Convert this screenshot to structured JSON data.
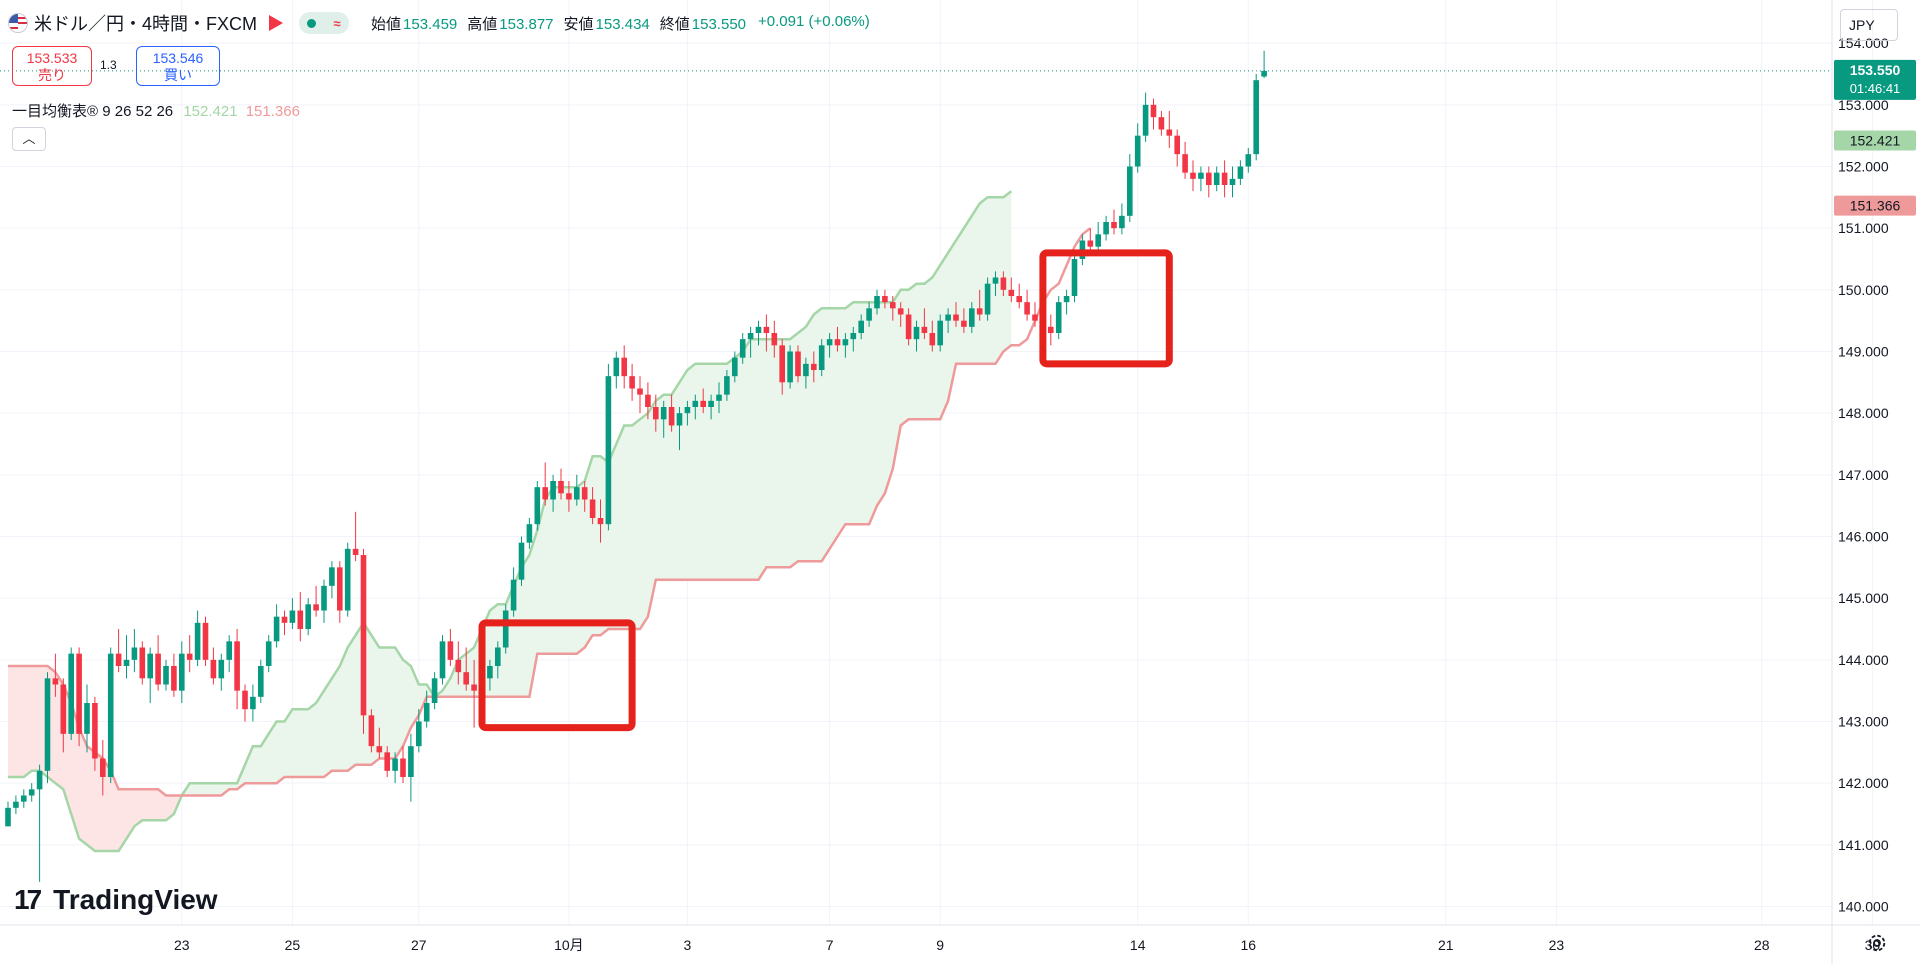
{
  "header": {
    "symbol": "米ドル／円・4時間・FXCM",
    "ohlc": [
      {
        "label": "始値",
        "value": "153.459"
      },
      {
        "label": "高値",
        "value": "153.877"
      },
      {
        "label": "安値",
        "value": "153.434"
      },
      {
        "label": "終値",
        "value": "153.550"
      }
    ],
    "change": "+0.091 (+0.06%)"
  },
  "trade": {
    "sell_price": "153.533",
    "sell_label": "売り",
    "spread": "1.3",
    "buy_price": "153.546",
    "buy_label": "買い"
  },
  "indicator": {
    "name": "一目均衡表®",
    "params": "9 26 52 26",
    "span_a_value": "152.421",
    "span_b_value": "151.366"
  },
  "currency_selector": "JPY",
  "brand": "TradingView",
  "colors": {
    "up": "#089981",
    "down": "#f23645",
    "span_a": "#a5d6a7",
    "span_b": "#ef9a9a",
    "highlight_box": "#e5231c"
  },
  "chart_data": {
    "type": "candlestick",
    "timeframe": "4時間",
    "y_axis": {
      "ticks": [
        "154.000",
        "153.000",
        "152.000",
        "151.000",
        "150.000",
        "149.000",
        "148.000",
        "147.000",
        "146.000",
        "145.000",
        "144.000",
        "143.000",
        "142.000",
        "141.000",
        "140.000"
      ],
      "range": [
        139.7,
        154.7
      ]
    },
    "x_axis": {
      "tick_labels": [
        "23",
        "25",
        "27",
        "10月",
        "3",
        "7",
        "9",
        "14",
        "16",
        "21",
        "23",
        "28",
        "30"
      ],
      "tick_index": [
        22,
        36,
        52,
        71,
        86,
        104,
        118,
        143,
        157,
        182,
        196,
        222,
        236
      ]
    },
    "current_price": {
      "value": "153.550",
      "countdown": "01:46:41"
    },
    "price_labels": [
      {
        "value": "152.421",
        "series": "span_a"
      },
      {
        "value": "151.366",
        "series": "span_b"
      }
    ],
    "candles": [
      [
        141.3,
        141.7,
        141.3,
        141.6
      ],
      [
        141.6,
        141.8,
        141.5,
        141.7
      ],
      [
        141.7,
        141.9,
        141.6,
        141.8
      ],
      [
        141.8,
        142.0,
        141.7,
        141.9
      ],
      [
        141.9,
        142.3,
        140.4,
        142.2
      ],
      [
        142.2,
        143.8,
        142.0,
        143.7
      ],
      [
        143.7,
        144.1,
        143.4,
        143.6
      ],
      [
        143.6,
        143.7,
        142.5,
        142.8
      ],
      [
        142.8,
        144.2,
        142.7,
        144.1
      ],
      [
        144.1,
        144.2,
        142.6,
        142.8
      ],
      [
        142.8,
        143.6,
        142.5,
        143.3
      ],
      [
        143.3,
        143.4,
        142.2,
        142.4
      ],
      [
        142.4,
        142.7,
        141.8,
        142.1
      ],
      [
        142.1,
        144.2,
        142.0,
        144.1
      ],
      [
        144.1,
        144.5,
        143.8,
        143.9
      ],
      [
        143.9,
        144.4,
        143.7,
        144.0
      ],
      [
        144.0,
        144.5,
        143.8,
        144.2
      ],
      [
        144.2,
        144.3,
        143.6,
        143.7
      ],
      [
        143.7,
        144.2,
        143.3,
        144.1
      ],
      [
        144.1,
        144.4,
        143.5,
        143.6
      ],
      [
        143.6,
        144.0,
        143.5,
        143.9
      ],
      [
        143.9,
        144.1,
        143.4,
        143.5
      ],
      [
        143.5,
        144.3,
        143.3,
        144.1
      ],
      [
        144.1,
        144.4,
        143.8,
        144.0
      ],
      [
        144.0,
        144.8,
        143.9,
        144.6
      ],
      [
        144.6,
        144.7,
        143.9,
        144.0
      ],
      [
        144.0,
        144.2,
        143.6,
        143.7
      ],
      [
        143.7,
        144.1,
        143.5,
        144.0
      ],
      [
        144.0,
        144.4,
        143.8,
        144.3
      ],
      [
        144.3,
        144.5,
        143.2,
        143.5
      ],
      [
        143.5,
        143.6,
        143.0,
        143.2
      ],
      [
        143.2,
        143.6,
        143.0,
        143.4
      ],
      [
        143.4,
        144.0,
        143.3,
        143.9
      ],
      [
        143.9,
        144.4,
        143.8,
        144.3
      ],
      [
        144.3,
        144.9,
        144.2,
        144.7
      ],
      [
        144.7,
        144.8,
        144.4,
        144.6
      ],
      [
        144.6,
        145.0,
        144.5,
        144.8
      ],
      [
        144.8,
        145.1,
        144.3,
        144.5
      ],
      [
        144.5,
        145.0,
        144.4,
        144.9
      ],
      [
        144.9,
        145.2,
        144.7,
        144.8
      ],
      [
        144.8,
        145.3,
        144.6,
        145.2
      ],
      [
        145.2,
        145.6,
        145.0,
        145.5
      ],
      [
        145.5,
        145.6,
        144.6,
        144.8
      ],
      [
        144.8,
        145.9,
        144.7,
        145.8
      ],
      [
        145.8,
        146.4,
        145.6,
        145.7
      ],
      [
        145.7,
        145.8,
        142.8,
        143.1
      ],
      [
        143.1,
        143.2,
        142.5,
        142.6
      ],
      [
        142.6,
        142.9,
        142.4,
        142.5
      ],
      [
        142.5,
        142.6,
        142.1,
        142.2
      ],
      [
        142.2,
        142.5,
        142.0,
        142.4
      ],
      [
        142.4,
        142.6,
        142.0,
        142.1
      ],
      [
        142.1,
        142.8,
        141.7,
        142.6
      ],
      [
        142.6,
        143.2,
        142.5,
        143.0
      ],
      [
        143.0,
        143.5,
        142.9,
        143.3
      ],
      [
        143.3,
        143.8,
        143.2,
        143.7
      ],
      [
        143.7,
        144.4,
        143.6,
        144.3
      ],
      [
        144.3,
        144.5,
        143.9,
        144.0
      ],
      [
        144.0,
        144.3,
        143.6,
        143.8
      ],
      [
        143.8,
        144.2,
        143.5,
        143.6
      ],
      [
        143.6,
        144.0,
        142.9,
        143.5
      ],
      [
        143.5,
        143.8,
        143.3,
        143.7
      ],
      [
        143.7,
        144.0,
        143.5,
        143.9
      ],
      [
        143.9,
        144.3,
        143.7,
        144.2
      ],
      [
        144.2,
        144.9,
        144.1,
        144.8
      ],
      [
        144.8,
        145.5,
        144.7,
        145.3
      ],
      [
        145.3,
        146.0,
        145.2,
        145.9
      ],
      [
        145.9,
        146.3,
        145.8,
        146.2
      ],
      [
        146.2,
        146.9,
        146.1,
        146.8
      ],
      [
        146.8,
        147.2,
        146.5,
        146.6
      ],
      [
        146.6,
        147.0,
        146.4,
        146.9
      ],
      [
        146.9,
        147.1,
        146.6,
        146.7
      ],
      [
        146.7,
        146.9,
        146.4,
        146.6
      ],
      [
        146.6,
        147.0,
        146.5,
        146.8
      ],
      [
        146.8,
        146.9,
        146.4,
        146.6
      ],
      [
        146.6,
        146.8,
        146.2,
        146.3
      ],
      [
        146.3,
        146.6,
        145.9,
        146.2
      ],
      [
        146.2,
        148.8,
        146.1,
        148.6
      ],
      [
        148.6,
        149.0,
        148.4,
        148.9
      ],
      [
        148.9,
        149.1,
        148.4,
        148.6
      ],
      [
        148.6,
        148.8,
        148.2,
        148.4
      ],
      [
        148.4,
        148.6,
        148.0,
        148.3
      ],
      [
        148.3,
        148.5,
        147.9,
        148.1
      ],
      [
        148.1,
        148.3,
        147.7,
        147.9
      ],
      [
        147.9,
        148.2,
        147.6,
        148.1
      ],
      [
        148.1,
        148.3,
        147.7,
        147.8
      ],
      [
        147.8,
        148.1,
        147.4,
        148.0
      ],
      [
        148.0,
        148.2,
        147.8,
        148.1
      ],
      [
        148.1,
        148.3,
        147.9,
        148.2
      ],
      [
        148.2,
        148.4,
        148.0,
        148.1
      ],
      [
        148.1,
        148.3,
        147.9,
        148.2
      ],
      [
        148.2,
        148.5,
        148.0,
        148.3
      ],
      [
        148.3,
        148.7,
        148.2,
        148.6
      ],
      [
        148.6,
        149.0,
        148.5,
        148.9
      ],
      [
        148.9,
        149.3,
        148.8,
        149.2
      ],
      [
        149.2,
        149.4,
        148.9,
        149.3
      ],
      [
        149.3,
        149.5,
        149.1,
        149.4
      ],
      [
        149.4,
        149.6,
        149.0,
        149.3
      ],
      [
        149.3,
        149.5,
        148.9,
        149.1
      ],
      [
        149.1,
        149.2,
        148.3,
        148.5
      ],
      [
        148.5,
        149.1,
        148.4,
        149.0
      ],
      [
        149.0,
        149.1,
        148.5,
        148.6
      ],
      [
        148.6,
        148.9,
        148.4,
        148.8
      ],
      [
        148.8,
        149.0,
        148.5,
        148.7
      ],
      [
        148.7,
        149.2,
        148.6,
        149.1
      ],
      [
        149.1,
        149.3,
        148.9,
        149.2
      ],
      [
        149.2,
        149.4,
        149.0,
        149.1
      ],
      [
        149.1,
        149.3,
        148.9,
        149.2
      ],
      [
        149.2,
        149.4,
        149.0,
        149.3
      ],
      [
        149.3,
        149.6,
        149.2,
        149.5
      ],
      [
        149.5,
        149.8,
        149.4,
        149.7
      ],
      [
        149.7,
        150.0,
        149.6,
        149.9
      ],
      [
        149.9,
        150.0,
        149.7,
        149.8
      ],
      [
        149.8,
        149.9,
        149.5,
        149.7
      ],
      [
        149.7,
        149.8,
        149.4,
        149.6
      ],
      [
        149.6,
        149.7,
        149.1,
        149.2
      ],
      [
        149.2,
        149.5,
        149.0,
        149.4
      ],
      [
        149.4,
        149.7,
        149.2,
        149.3
      ],
      [
        149.3,
        149.5,
        149.0,
        149.1
      ],
      [
        149.1,
        149.6,
        149.0,
        149.5
      ],
      [
        149.5,
        149.7,
        149.3,
        149.6
      ],
      [
        149.6,
        149.8,
        149.4,
        149.5
      ],
      [
        149.5,
        149.7,
        149.3,
        149.4
      ],
      [
        149.4,
        149.8,
        149.3,
        149.7
      ],
      [
        149.7,
        150.0,
        149.5,
        149.6
      ],
      [
        149.6,
        150.2,
        149.5,
        150.1
      ],
      [
        150.1,
        150.3,
        149.9,
        150.2
      ],
      [
        150.2,
        150.3,
        149.9,
        150.0
      ],
      [
        150.0,
        150.2,
        149.8,
        149.9
      ],
      [
        149.9,
        150.1,
        149.7,
        149.8
      ],
      [
        149.8,
        150.0,
        149.5,
        149.6
      ],
      [
        149.6,
        149.8,
        149.4,
        149.5
      ],
      [
        149.5,
        149.7,
        149.3,
        149.4
      ],
      [
        149.4,
        149.6,
        149.1,
        149.3
      ],
      [
        149.3,
        149.9,
        149.2,
        149.8
      ],
      [
        149.8,
        150.0,
        149.6,
        149.9
      ],
      [
        149.9,
        150.6,
        149.8,
        150.5
      ],
      [
        150.5,
        150.9,
        150.4,
        150.8
      ],
      [
        150.8,
        151.0,
        150.6,
        150.7
      ],
      [
        150.7,
        151.1,
        150.6,
        150.9
      ],
      [
        150.9,
        151.2,
        150.8,
        151.1
      ],
      [
        151.1,
        151.3,
        150.9,
        151.0
      ],
      [
        151.0,
        151.4,
        150.9,
        151.2
      ],
      [
        151.2,
        152.2,
        151.1,
        152.0
      ],
      [
        152.0,
        152.7,
        151.9,
        152.5
      ],
      [
        152.5,
        153.2,
        152.4,
        153.0
      ],
      [
        153.0,
        153.1,
        152.6,
        152.8
      ],
      [
        152.8,
        152.9,
        152.5,
        152.6
      ],
      [
        152.6,
        152.9,
        152.3,
        152.5
      ],
      [
        152.5,
        152.6,
        152.0,
        152.2
      ],
      [
        152.2,
        152.4,
        151.8,
        151.9
      ],
      [
        151.9,
        152.1,
        151.6,
        151.8
      ],
      [
        151.8,
        152.0,
        151.6,
        151.9
      ],
      [
        151.9,
        152.0,
        151.5,
        151.7
      ],
      [
        151.7,
        152.0,
        151.6,
        151.9
      ],
      [
        151.9,
        152.1,
        151.5,
        151.7
      ],
      [
        151.7,
        152.0,
        151.5,
        151.8
      ],
      [
        151.8,
        152.1,
        151.7,
        152.0
      ],
      [
        152.0,
        152.3,
        151.9,
        152.2
      ],
      [
        152.2,
        153.5,
        152.1,
        153.4
      ],
      [
        153.459,
        153.877,
        153.434,
        153.55
      ]
    ],
    "span_a": [
      142.1,
      142.1,
      142.1,
      142.2,
      142.2,
      142.1,
      142.0,
      141.9,
      141.5,
      141.1,
      141.0,
      140.9,
      140.9,
      140.9,
      140.9,
      141.1,
      141.3,
      141.4,
      141.4,
      141.4,
      141.4,
      141.5,
      141.8,
      142.0,
      142.0,
      142.0,
      142.0,
      142.0,
      142.0,
      142.0,
      142.3,
      142.6,
      142.6,
      142.8,
      143.0,
      143.0,
      143.2,
      143.2,
      143.2,
      143.3,
      143.5,
      143.7,
      143.9,
      144.2,
      144.4,
      144.6,
      144.4,
      144.2,
      144.2,
      144.2,
      144.0,
      143.9,
      143.6,
      143.6,
      143.4,
      143.5,
      143.7,
      144.0,
      144.1,
      144.2,
      144.5,
      144.8,
      144.9,
      144.9,
      145.2,
      145.5,
      145.7,
      146.1,
      146.6,
      146.8,
      146.8,
      146.8,
      146.8,
      146.9,
      147.3,
      147.3,
      147.2,
      147.5,
      147.8,
      147.8,
      147.9,
      148.0,
      148.2,
      148.3,
      148.3,
      148.5,
      148.7,
      148.8,
      148.8,
      148.8,
      148.8,
      148.8,
      148.9,
      149.0,
      149.2,
      149.2,
      149.2,
      149.2,
      149.2,
      149.2,
      149.3,
      149.4,
      149.6,
      149.7,
      149.7,
      149.7,
      149.7,
      149.8,
      149.8,
      149.8,
      149.8,
      149.8,
      149.8,
      150.0,
      150.0,
      150.1,
      150.1,
      150.2,
      150.4,
      150.6,
      150.8,
      151.0,
      151.2,
      151.4,
      151.5,
      151.5,
      151.5,
      151.6
    ],
    "span_b": [
      143.9,
      143.9,
      143.9,
      143.9,
      143.9,
      143.9,
      143.8,
      143.6,
      143.3,
      142.9,
      142.6,
      142.5,
      142.4,
      142.2,
      141.9,
      141.9,
      141.9,
      141.9,
      141.9,
      141.9,
      141.8,
      141.8,
      141.8,
      141.8,
      141.8,
      141.8,
      141.8,
      141.8,
      141.9,
      141.9,
      142.0,
      142.0,
      142.0,
      142.0,
      142.0,
      142.1,
      142.1,
      142.1,
      142.1,
      142.1,
      142.1,
      142.2,
      142.2,
      142.2,
      142.3,
      142.3,
      142.3,
      142.4,
      142.4,
      142.4,
      142.6,
      142.9,
      143.1,
      143.4,
      143.4,
      143.4,
      143.4,
      143.4,
      143.4,
      143.4,
      143.4,
      143.4,
      143.4,
      143.4,
      143.4,
      143.4,
      143.4,
      144.1,
      144.1,
      144.1,
      144.1,
      144.1,
      144.1,
      144.2,
      144.4,
      144.4,
      144.5,
      144.5,
      144.5,
      144.5,
      144.5,
      144.7,
      145.3,
      145.3,
      145.3,
      145.3,
      145.3,
      145.3,
      145.3,
      145.3,
      145.3,
      145.3,
      145.3,
      145.3,
      145.3,
      145.3,
      145.5,
      145.5,
      145.5,
      145.5,
      145.6,
      145.6,
      145.6,
      145.6,
      145.8,
      146.0,
      146.2,
      146.2,
      146.2,
      146.2,
      146.5,
      146.7,
      147.1,
      147.8,
      147.9,
      147.9,
      147.9,
      147.9,
      147.9,
      148.2,
      148.8,
      148.8,
      148.8,
      148.8,
      148.8,
      148.8,
      149.0,
      149.1,
      149.1,
      149.2,
      149.5,
      149.8,
      150.0,
      150.1,
      150.4,
      150.7,
      150.9,
      151.0
    ],
    "highlight_boxes": [
      {
        "index_from": 60,
        "index_to": 79,
        "price_from": 142.9,
        "price_to": 144.6
      },
      {
        "index_from": 131,
        "index_to": 147,
        "price_from": 148.8,
        "price_to": 150.6
      }
    ]
  }
}
